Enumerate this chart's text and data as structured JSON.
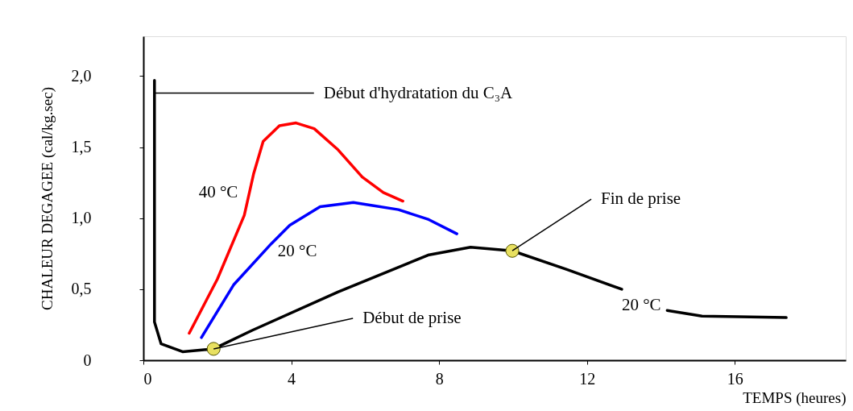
{
  "chart_data": {
    "type": "line",
    "xlabel": "TEMPS  (heures)",
    "ylabel": "CHALEUR DEGAGEE  (cal/kg.sec)",
    "xlim": [
      0,
      19
    ],
    "ylim": [
      0,
      2.28
    ],
    "xticks": [
      0,
      4,
      8,
      12,
      16
    ],
    "yticks": [
      0,
      {
        "value": 0.5,
        "label": "0,5"
      },
      {
        "value": 1.0,
        "label": "1,0"
      },
      {
        "value": 1.5,
        "label": "1,5"
      },
      {
        "value": 2.0,
        "label": "2,0"
      }
    ],
    "grid": false,
    "marker": "none",
    "line_style": "solid",
    "series": [
      {
        "name": "40 °C",
        "color": "#ff0000",
        "x": [
          1.24,
          2.0,
          2.73,
          2.98,
          3.24,
          3.68,
          4.13,
          4.62,
          5.27,
          5.92,
          6.49,
          7.02
        ],
        "values": [
          0.19,
          0.57,
          1.02,
          1.31,
          1.54,
          1.65,
          1.67,
          1.63,
          1.48,
          1.29,
          1.18,
          1.12
        ]
      },
      {
        "name": "20 °C",
        "color": "#0000ff",
        "x": [
          1.57,
          2.44,
          3.46,
          3.96,
          4.78,
          5.68,
          6.9,
          7.72,
          8.48
        ],
        "values": [
          0.16,
          0.53,
          0.82,
          0.95,
          1.08,
          1.11,
          1.06,
          0.99,
          0.89
        ]
      },
      {
        "name": "20 °C",
        "color": "#000000",
        "x": [
          0.3,
          0.3,
          0.48,
          1.06,
          1.9,
          2.94,
          5.26,
          7.7,
          8.85,
          9.98,
          11.44,
          12.94,
          13.5,
          14.17,
          15.11,
          17.39
        ],
        "values": [
          1.97,
          0.27,
          0.115,
          0.06,
          0.08,
          0.21,
          0.48,
          0.74,
          0.795,
          0.77,
          0.64,
          0.5,
          null,
          0.35,
          0.31,
          0.3
        ]
      },
      {
        "type": "scatter",
        "color": "#e8e060",
        "marker": "circle",
        "x": [
          1.9,
          9.98
        ],
        "values": [
          0.08,
          0.77
        ]
      }
    ],
    "annotations": [
      {
        "text": "Début d'hydratation du C₃A",
        "x": 0.3,
        "y": 1.88
      },
      {
        "text": "Début de prise",
        "x": 1.9,
        "y": 0.08
      },
      {
        "text": "Fin de prise",
        "x": 9.98,
        "y": 0.77
      }
    ]
  }
}
